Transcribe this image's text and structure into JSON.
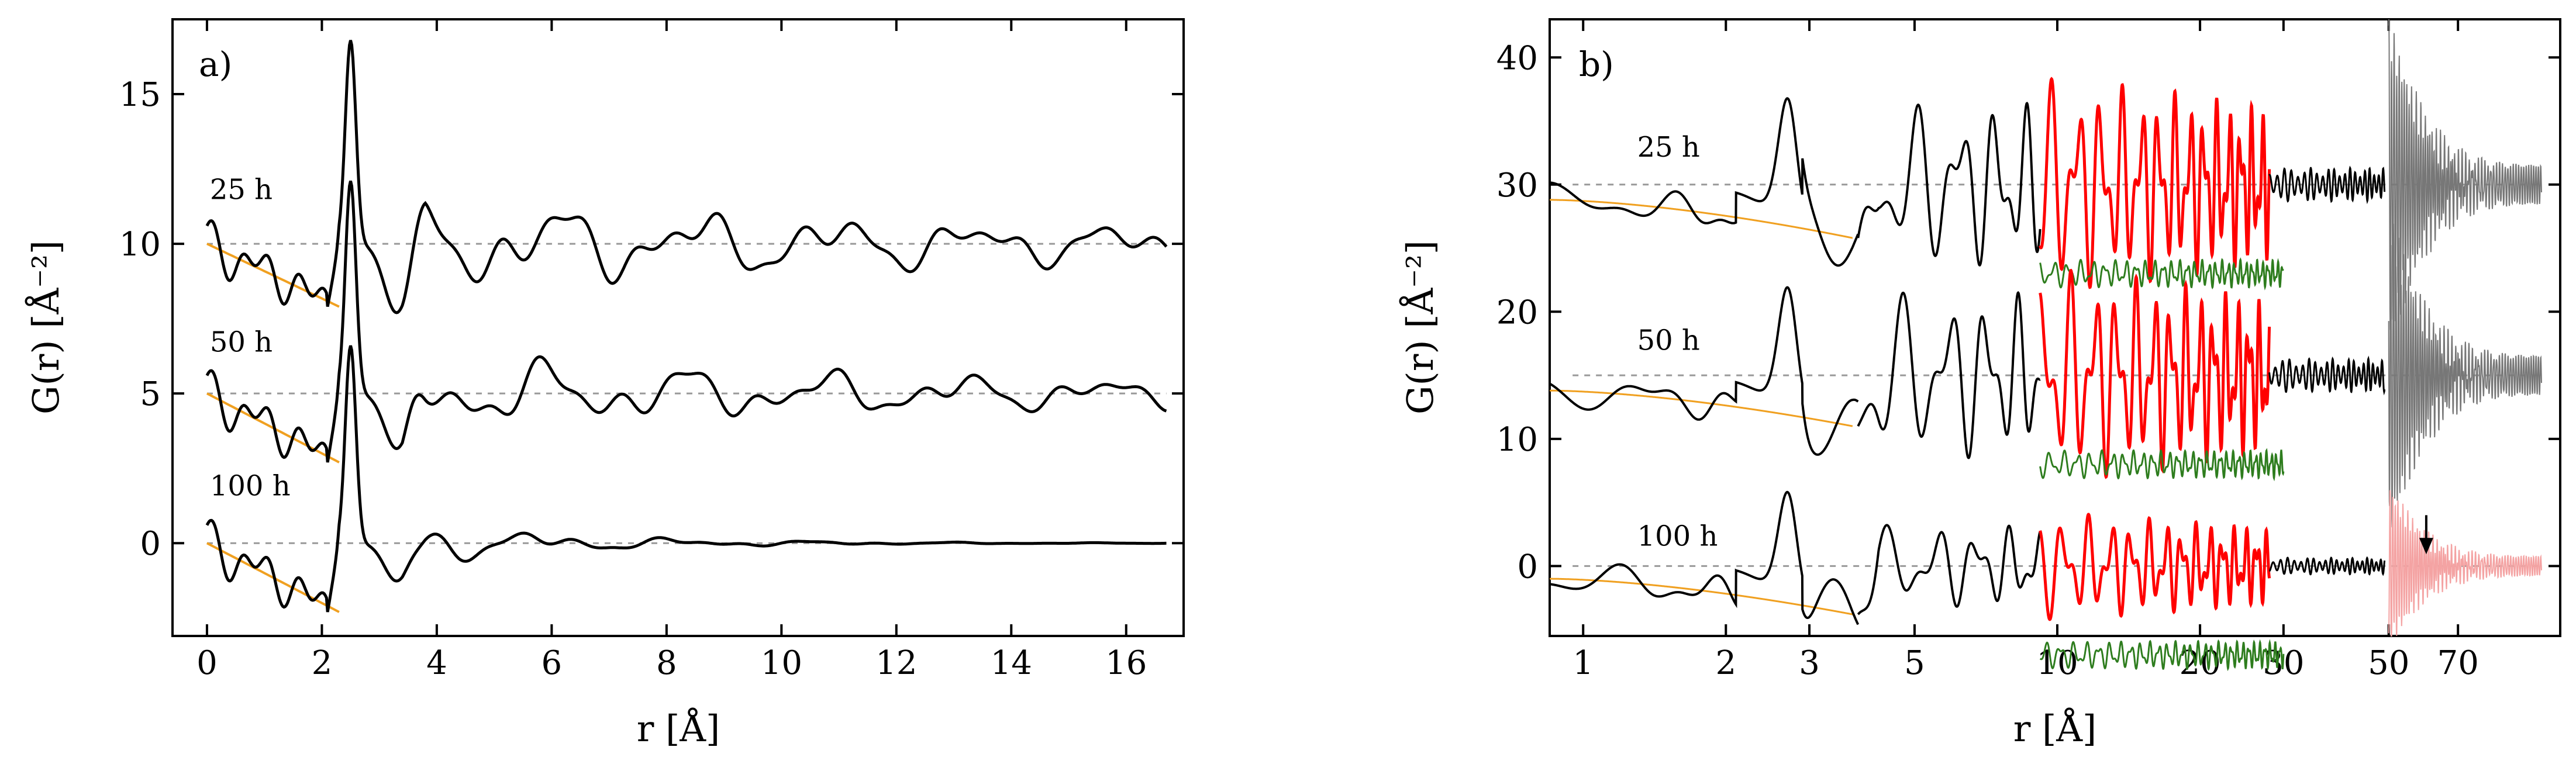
{
  "chart_data": [
    {
      "type": "line",
      "panel_label": "a)",
      "xlabel": "r [Å]",
      "ylabel": "G(r) [Å⁻²]",
      "xlim": [
        -0.6,
        17.0
      ],
      "ylim": [
        -3.1,
        17.5
      ],
      "xticks": [
        0,
        2,
        4,
        6,
        8,
        10,
        12,
        14,
        16
      ],
      "yticks": [
        0,
        5,
        10,
        15
      ],
      "series": [
        {
          "name": "25 h",
          "label_at": [
            0.05,
            11.5
          ],
          "offset": 10,
          "peak_max": 16.8,
          "fit_start": 10.0,
          "fit_end": 7.9,
          "amp": 1.0,
          "color": "#000000"
        },
        {
          "name": "50 h",
          "label_at": [
            0.05,
            6.4
          ],
          "offset": 5,
          "peak_max": 12.1,
          "fit_start": 5.0,
          "fit_end": 2.7,
          "amp": 0.8,
          "color": "#000000"
        },
        {
          "name": "100 h",
          "label_at": [
            0.05,
            1.6
          ],
          "offset": 0,
          "peak_max": 6.6,
          "fit_start": 0.0,
          "fit_end": -2.3,
          "amp": 0.55,
          "color": "#000000"
        }
      ],
      "fit_color": "#f0a020"
    },
    {
      "type": "line",
      "panel_label": "b)",
      "xlabel": "r [Å]",
      "ylabel": "G(r) [Å⁻²]",
      "xscale": "log",
      "xlim": [
        0.85,
        115
      ],
      "ylim": [
        -5.5,
        43.0
      ],
      "xticks": [
        1,
        2,
        3,
        5,
        10,
        20,
        30,
        50,
        70
      ],
      "yticks": [
        0,
        10,
        20,
        30,
        40
      ],
      "series": [
        {
          "name": "25 h",
          "label_at": [
            1.3,
            32.2
          ],
          "offset": 30,
          "start": 28.8,
          "fit_end": 25.8,
          "peak_max": 39.5
        },
        {
          "name": "50 h",
          "label_at": [
            1.3,
            17.0
          ],
          "offset": 15,
          "start": 13.8,
          "fit_end": 11.0,
          "peak_max": 24.5
        },
        {
          "name": "100 h",
          "label_at": [
            1.3,
            1.6
          ],
          "offset": 0,
          "start": -1.0,
          "fit_end": -3.8,
          "peak_max": 8.2
        }
      ],
      "colors": {
        "measured": "#000000",
        "fit_region": "#ff0000",
        "difference": "#2e7d1e",
        "high_r": "#777777",
        "high_r_100h": "#f4a3a3",
        "fit": "#f0a020"
      },
      "annotation": {
        "type": "arrow",
        "x": 60,
        "y_from": 4.0,
        "y_to": 1.2
      }
    }
  ]
}
